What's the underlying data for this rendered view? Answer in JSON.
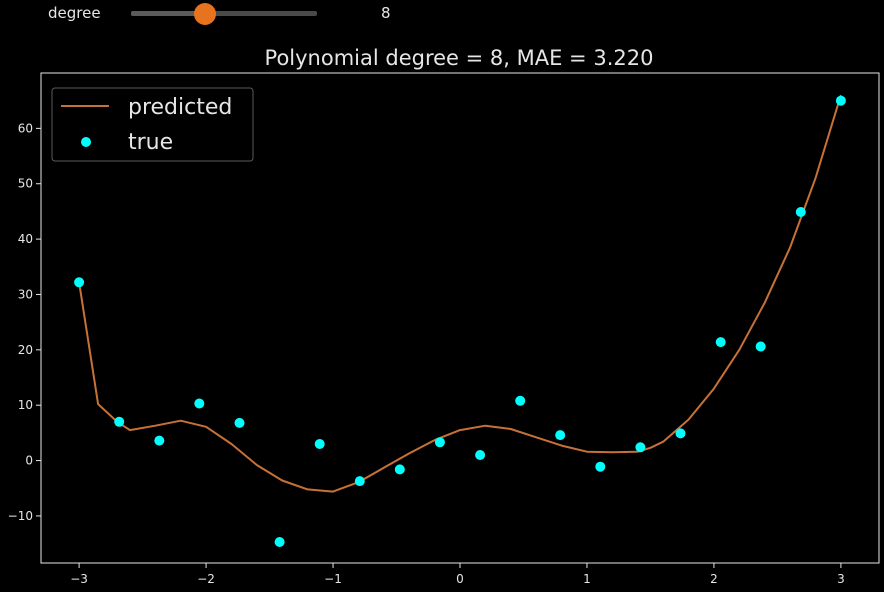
{
  "slider": {
    "label": "degree",
    "value": 8,
    "min": 0,
    "max": 20,
    "handle_color": "#e8731e"
  },
  "chart_data": {
    "type": "line",
    "title": "Polynomial degree =  8, MAE = 3.220",
    "xlim": [
      -3.3,
      3.3
    ],
    "ylim": [
      -18.5,
      70
    ],
    "xticks": [
      -3,
      -2,
      -1,
      0,
      1,
      2,
      3
    ],
    "xtick_labels": [
      "−3",
      "−2",
      "−1",
      "0",
      "1",
      "2",
      "3"
    ],
    "yticks": [
      -10,
      0,
      10,
      20,
      30,
      40,
      50,
      60
    ],
    "ytick_labels": [
      "−10",
      "0",
      "10",
      "20",
      "30",
      "40",
      "50",
      "60"
    ],
    "grid": false,
    "legend": {
      "placement": "top-left",
      "entries": [
        "predicted",
        "true"
      ]
    },
    "colors": {
      "predicted": "#c87137",
      "true": "#00ffff",
      "background": "#000000",
      "axes": "#e6e6e6"
    },
    "series": [
      {
        "name": "predicted",
        "kind": "line",
        "x": [
          -3.0,
          -2.85,
          -2.7,
          -2.6,
          -2.4,
          -2.2,
          -2.0,
          -1.8,
          -1.6,
          -1.4,
          -1.2,
          -1.0,
          -0.8,
          -0.6,
          -0.4,
          -0.2,
          0.0,
          0.2,
          0.4,
          0.6,
          0.8,
          1.0,
          1.2,
          1.4,
          1.5,
          1.6,
          1.8,
          2.0,
          2.2,
          2.4,
          2.6,
          2.8,
          3.0
        ],
        "y": [
          32.2,
          10.2,
          7.0,
          5.5,
          6.3,
          7.2,
          6.1,
          3.0,
          -0.8,
          -3.6,
          -5.2,
          -5.6,
          -3.9,
          -1.3,
          1.3,
          3.7,
          5.5,
          6.3,
          5.7,
          4.2,
          2.7,
          1.6,
          1.5,
          1.6,
          2.3,
          3.4,
          7.4,
          13.0,
          20.0,
          28.5,
          38.5,
          51.0,
          66.0
        ]
      },
      {
        "name": "true",
        "kind": "scatter",
        "x": [
          -3.0,
          -2.684,
          -2.368,
          -2.053,
          -1.737,
          -1.421,
          -1.105,
          -0.789,
          -0.474,
          -0.158,
          0.158,
          0.474,
          0.789,
          1.105,
          1.421,
          1.737,
          2.053,
          2.368,
          2.684,
          3.0
        ],
        "y": [
          32.2,
          7.0,
          3.6,
          10.3,
          6.8,
          -14.7,
          3.0,
          -3.7,
          -1.6,
          3.3,
          1.0,
          10.8,
          4.6,
          -1.1,
          2.4,
          4.9,
          21.4,
          20.6,
          44.9,
          65.0
        ]
      }
    ]
  }
}
